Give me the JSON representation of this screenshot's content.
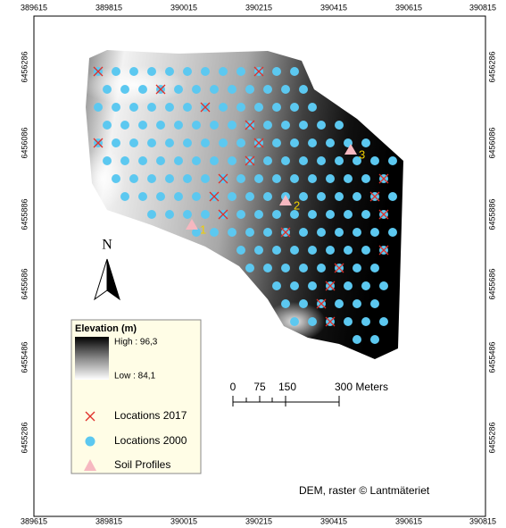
{
  "map": {
    "x_labels": [
      "389615",
      "389815",
      "390015",
      "390215",
      "390415",
      "390615",
      "390815"
    ],
    "y_labels": [
      "6456286",
      "6456086",
      "6455886",
      "6455686",
      "6455486",
      "6455286"
    ],
    "legend": {
      "title": "Elevation (m)",
      "high": "High : 96,3",
      "low": "Low : 84,1",
      "items": [
        "Locations 2017",
        "Locations 2000",
        "Soil Profiles"
      ]
    },
    "scale_bar": [
      "0",
      "75",
      "150",
      "300 Meters"
    ],
    "north": "N",
    "soil_profile_labels": [
      "1",
      "2",
      "3"
    ],
    "credit": "DEM, raster © Lantmäteriet"
  }
}
